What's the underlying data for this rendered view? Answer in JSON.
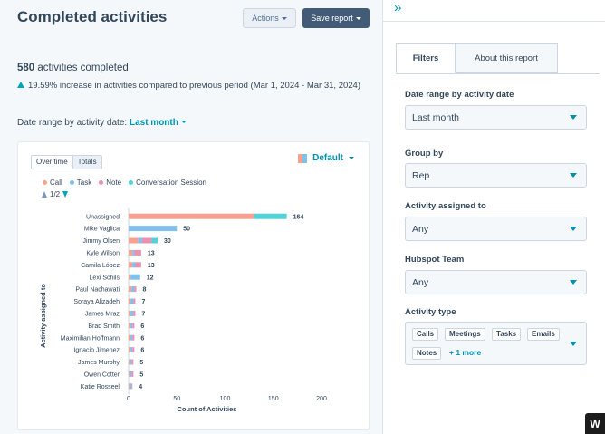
{
  "header": {
    "title": "Completed activities",
    "actions_label": "Actions",
    "save_label": "Save report"
  },
  "summary": {
    "count": "580",
    "count_suffix": "activities completed",
    "change_text": "19.59% increase in activities compared to previous period (Mar 1, 2024 - Mar 31, 2024)",
    "date_prefix": "Date range by activity date:",
    "date_value": "Last month"
  },
  "chart_controls": {
    "tabs": [
      "Over time",
      "Totals"
    ],
    "active_tab": "Totals",
    "palette_label": "Default",
    "pager": "1/2"
  },
  "chart_data": {
    "type": "bar",
    "orientation": "horizontal",
    "stacked": true,
    "ylabel": "Activity assigned to",
    "xlabel": "Count of Activities",
    "xlim": [
      0,
      200
    ],
    "xticks": [
      0,
      50,
      100,
      150,
      200
    ],
    "legend_position": "top-left",
    "series": [
      {
        "name": "Call",
        "color": "#f8a191"
      },
      {
        "name": "Task",
        "color": "#7fc0ec"
      },
      {
        "name": "Note",
        "color": "#ea90b1"
      },
      {
        "name": "Conversation Session",
        "color": "#51d3d9"
      }
    ],
    "categories": [
      {
        "label": "Unassigned",
        "total": 164,
        "segments": [
          130,
          0,
          0,
          34
        ]
      },
      {
        "label": "Mike Vaglica",
        "total": 50,
        "segments": [
          0,
          50,
          0,
          0
        ]
      },
      {
        "label": "Jimmy Olsen",
        "total": 30,
        "segments": [
          10,
          4,
          10,
          6
        ]
      },
      {
        "label": "Kyle Wilson",
        "total": 13,
        "segments": [
          4,
          2,
          7,
          0
        ]
      },
      {
        "label": "Camila López",
        "total": 13,
        "segments": [
          4,
          3,
          6,
          0
        ]
      },
      {
        "label": "Lexi Schils",
        "total": 12,
        "segments": [
          2,
          10,
          0,
          0
        ]
      },
      {
        "label": "Paul Nachawati",
        "total": 8,
        "segments": [
          3,
          3,
          2,
          0
        ]
      },
      {
        "label": "Soraya Alizadeh",
        "total": 7,
        "segments": [
          2,
          3,
          2,
          0
        ]
      },
      {
        "label": "James Mraz",
        "total": 7,
        "segments": [
          2,
          3,
          2,
          0
        ]
      },
      {
        "label": "Brad Smith",
        "total": 6,
        "segments": [
          2,
          2,
          2,
          0
        ]
      },
      {
        "label": "Maximilian Hoffmann",
        "total": 6,
        "segments": [
          2,
          2,
          2,
          0
        ]
      },
      {
        "label": "Ignacio Jimenez",
        "total": 6,
        "segments": [
          2,
          2,
          2,
          0
        ]
      },
      {
        "label": "James Murphy",
        "total": 5,
        "segments": [
          1,
          2,
          2,
          0
        ]
      },
      {
        "label": "Owen Cotter",
        "total": 5,
        "segments": [
          1,
          2,
          2,
          0
        ]
      },
      {
        "label": "Katie Rosseel",
        "total": 4,
        "segments": [
          1,
          2,
          1,
          0
        ]
      }
    ]
  },
  "panel": {
    "tabs": [
      "Filters",
      "About this report"
    ],
    "filters": [
      {
        "label": "Date range by activity date",
        "value": "Last month"
      },
      {
        "label": "Group by",
        "value": "Rep"
      },
      {
        "label": "Activity assigned to",
        "value": "Any"
      },
      {
        "label": "Hubspot Team",
        "value": "Any"
      }
    ],
    "activity_type": {
      "label": "Activity type",
      "chips": [
        "Calls",
        "Meetings",
        "Tasks",
        "Emails",
        "Notes"
      ],
      "more": "+ 1 more"
    }
  },
  "widget_letter": "W"
}
